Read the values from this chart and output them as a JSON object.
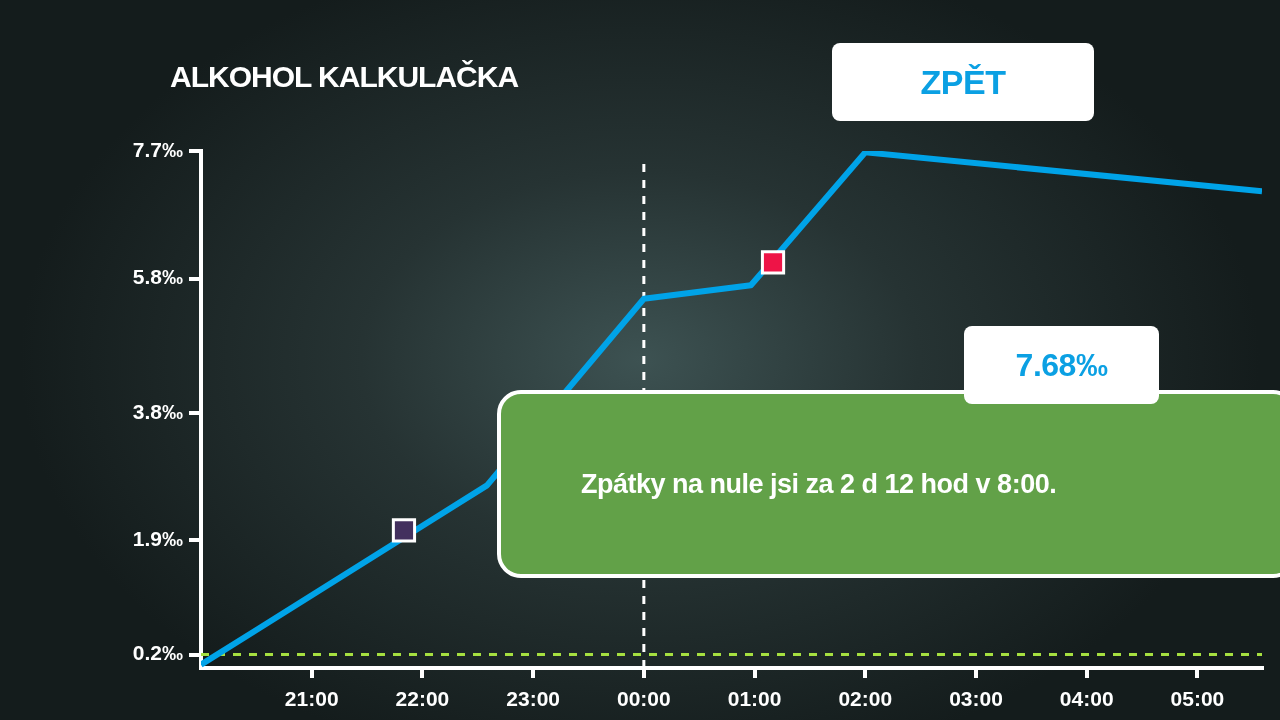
{
  "chart_data": {
    "type": "line",
    "title": "ALKOHOL KALKULAČKA",
    "xlim": [
      "2000-01-01T20:00",
      "2000-01-02T05:35"
    ],
    "xticks": [
      {
        "value": "2000-01-01T21:00",
        "label": "21:00"
      },
      {
        "value": "2000-01-01T22:00",
        "label": "22:00"
      },
      {
        "value": "2000-01-01T23:00",
        "label": "23:00"
      },
      {
        "value": "2000-01-02T00:00",
        "label": "00:00"
      },
      {
        "value": "2000-01-02T01:00",
        "label": "01:00"
      },
      {
        "value": "2000-01-02T02:00",
        "label": "02:00"
      },
      {
        "value": "2000-01-02T03:00",
        "label": "03:00"
      },
      {
        "value": "2000-01-02T04:00",
        "label": "04:00"
      },
      {
        "value": "2000-01-02T05:00",
        "label": "05:00"
      }
    ],
    "ylim": [
      0,
      7.7
    ],
    "yticks": [
      {
        "value": 0.2,
        "label": "0.2‰"
      },
      {
        "value": 1.9,
        "label": "1.9‰"
      },
      {
        "value": 3.8,
        "label": "3.8‰"
      },
      {
        "value": 5.8,
        "label": "5.8‰"
      },
      {
        "value": 7.7,
        "label": "7.7‰"
      }
    ],
    "series": [
      {
        "color": "#00a3e8",
        "marker": "none",
        "x": [
          "2000-01-01T20:00",
          "2000-01-01T22:35",
          "2000-01-02T00:00",
          "2000-01-02T00:58",
          "2000-01-02T02:00",
          "2000-01-02T05:35"
        ],
        "values": [
          0.05,
          2.72,
          5.5,
          5.7,
          7.68,
          7.1
        ]
      },
      {
        "type": "scatter",
        "marker": "square",
        "x": [
          "2000-01-01T21:50",
          "2000-01-01T23:23",
          "2000-01-02T01:10"
        ],
        "values": [
          2.05,
          null,
          6.04
        ],
        "colors": [
          "#43305e",
          "#8a2340",
          "#ee1447"
        ]
      }
    ],
    "ref_lines": [
      {
        "axis": "y",
        "value": 0.2,
        "color": "#a6e040",
        "line_style": "dashed"
      },
      {
        "axis": "x",
        "value": "2000-01-02T00:00",
        "color": "#ffffff",
        "line_style": "dashed"
      }
    ],
    "annotations": [
      "ZPĚT",
      "7.68‰",
      "Zpátky na nule jsi za 2 d 12 hod v 8:00."
    ],
    "grid": false,
    "legend": false
  }
}
